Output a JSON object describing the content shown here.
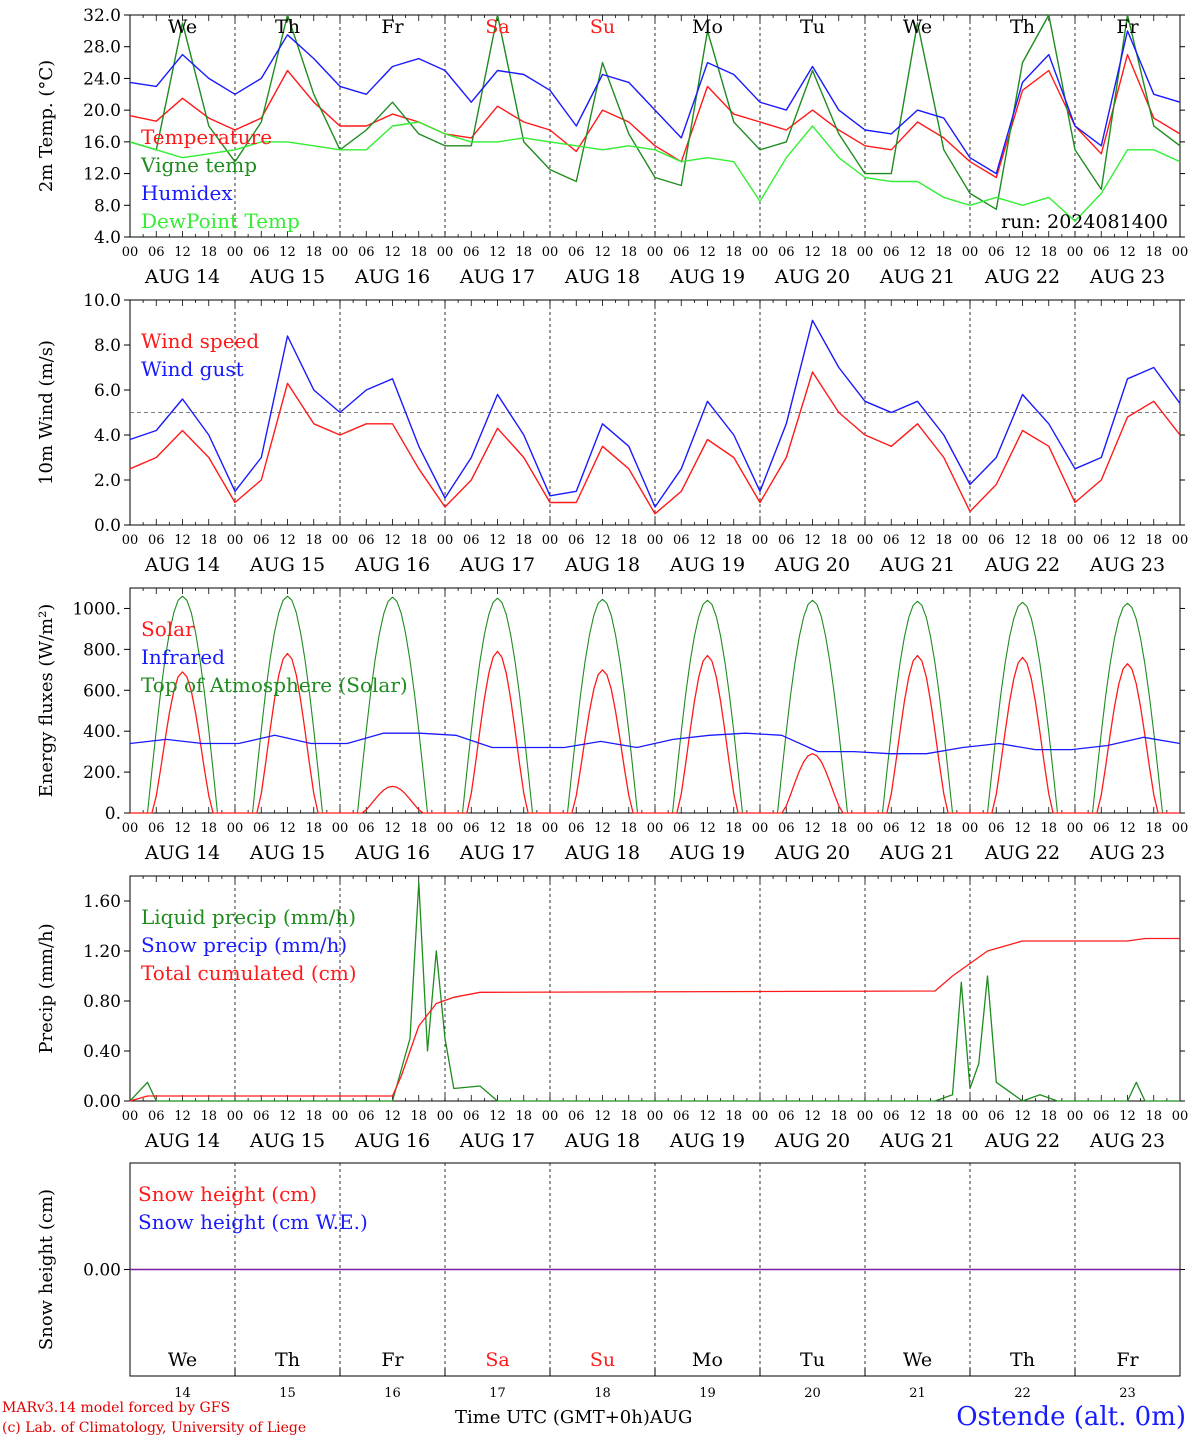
{
  "days": [
    "We",
    "Th",
    "Fr",
    "Sa",
    "Su",
    "Mo",
    "Tu",
    "We",
    "Th",
    "Fr"
  ],
  "weekend_days": [
    3,
    4
  ],
  "date_labels": [
    "AUG 14",
    "AUG 15",
    "AUG 16",
    "AUG 17",
    "AUG 18",
    "AUG 19",
    "AUG 20",
    "AUG 21",
    "AUG 22",
    "AUG 23"
  ],
  "hour_labels": [
    "00",
    "06",
    "12",
    "18"
  ],
  "hour_end": "00",
  "bottom_day_numbers": [
    "14",
    "15",
    "16",
    "17",
    "18",
    "19",
    "20",
    "21",
    "22",
    "23"
  ],
  "run_label": "run: 2024081400",
  "colors": {
    "red": "#ff1a1a",
    "green": "#1f8c1f",
    "blue": "#1a1aff",
    "light_green": "#33ee33",
    "purple": "#7a1fa0"
  },
  "footer": {
    "model": "MARv3.14 model forced by GFS",
    "credit": "(c) Lab. of Climatology, University of Liege",
    "axis_title": "Time UTC (GMT+0h)AUG",
    "station": "Ostende (alt. 0m)"
  },
  "chart_data": [
    {
      "type": "line",
      "ylabel": "2m Temp. (°C)",
      "ylim": [
        4,
        32
      ],
      "yticks": [
        "4.0",
        "8.0",
        "12.0",
        "16.0",
        "20.0",
        "24.0",
        "28.0",
        "32.0"
      ],
      "x_hours_from_start": [
        0,
        6,
        12,
        18,
        24,
        30,
        36,
        42,
        48,
        54,
        60,
        66,
        72,
        78,
        84,
        90,
        96,
        102,
        108,
        114,
        120,
        126,
        132,
        138,
        144,
        150,
        156,
        162,
        168,
        174,
        180,
        186,
        192,
        198,
        204,
        210,
        216,
        222,
        228,
        234,
        240
      ],
      "series": [
        {
          "name": "Temperature",
          "color": "red",
          "values": [
            19.3,
            18.6,
            21.5,
            19.0,
            17.5,
            19.0,
            25.0,
            21.0,
            18.0,
            18.0,
            19.5,
            18.5,
            17.0,
            16.5,
            20.5,
            18.5,
            17.5,
            14.8,
            20.0,
            18.5,
            15.5,
            13.5,
            23.0,
            19.5,
            18.5,
            17.5,
            20.0,
            17.5,
            15.5,
            15.0,
            18.5,
            16.5,
            13.5,
            11.5,
            22.5,
            25.0,
            18.0,
            14.5,
            27.0,
            19.0,
            17.0
          ]
        },
        {
          "name": "Vigne temp",
          "color": "green",
          "values": [
            16.0,
            15.0,
            31.0,
            18.0,
            13.5,
            18.5,
            32.0,
            22.0,
            15.0,
            17.5,
            21.0,
            17.0,
            15.5,
            15.5,
            32.0,
            16.0,
            12.5,
            11.0,
            26.0,
            17.0,
            11.5,
            10.5,
            30.0,
            18.5,
            15.0,
            16.0,
            25.0,
            17.0,
            12.0,
            12.0,
            31.0,
            15.0,
            9.5,
            7.5,
            26.0,
            32.0,
            15.0,
            10.0,
            32.0,
            18.0,
            15.5
          ]
        },
        {
          "name": "Humidex",
          "color": "blue",
          "values": [
            23.5,
            23.0,
            27.0,
            24.0,
            22.0,
            24.0,
            29.5,
            26.5,
            23.0,
            22.0,
            25.5,
            26.5,
            25.0,
            21.0,
            25.0,
            24.5,
            22.5,
            18.0,
            24.5,
            23.5,
            20.0,
            16.5,
            26.0,
            24.5,
            21.0,
            20.0,
            25.5,
            20.0,
            17.5,
            17.0,
            20.0,
            19.0,
            14.0,
            12.0,
            23.5,
            27.0,
            18.0,
            15.5,
            30.0,
            22.0,
            21.0
          ]
        },
        {
          "name": "DewPoint Temp",
          "color": "light_green",
          "values": [
            16.0,
            15.0,
            14.0,
            14.5,
            15.0,
            16.0,
            16.0,
            15.5,
            15.0,
            15.0,
            18.0,
            18.5,
            17.0,
            16.0,
            16.0,
            16.5,
            16.0,
            15.5,
            15.0,
            15.5,
            15.0,
            13.5,
            14.0,
            13.5,
            8.5,
            14.0,
            18.0,
            14.0,
            11.5,
            11.0,
            11.0,
            9.0,
            8.0,
            9.0,
            8.0,
            9.0,
            6.0,
            9.5,
            15.0,
            15.0,
            13.5
          ]
        }
      ],
      "annotation": "run: 2024081400"
    },
    {
      "type": "line",
      "ylabel": "10m Wind (m/s)",
      "ylim": [
        0,
        10
      ],
      "yticks": [
        "0.0",
        "2.0",
        "4.0",
        "6.0",
        "8.0",
        "10.0"
      ],
      "reference_line": 5.0,
      "x_hours_from_start": [
        0,
        6,
        12,
        18,
        24,
        30,
        36,
        42,
        48,
        54,
        60,
        66,
        72,
        78,
        84,
        90,
        96,
        102,
        108,
        114,
        120,
        126,
        132,
        138,
        144,
        150,
        156,
        162,
        168,
        174,
        180,
        186,
        192,
        198,
        204,
        210,
        216,
        222,
        228,
        234,
        240
      ],
      "series": [
        {
          "name": "Wind speed",
          "color": "red",
          "values": [
            2.5,
            3.0,
            4.2,
            3.0,
            1.0,
            2.0,
            6.3,
            4.5,
            4.0,
            4.5,
            4.5,
            2.5,
            0.8,
            2.0,
            4.3,
            3.0,
            1.0,
            1.0,
            3.5,
            2.5,
            0.5,
            1.5,
            3.8,
            3.0,
            1.0,
            3.0,
            6.8,
            5.0,
            4.0,
            3.5,
            4.5,
            3.0,
            0.6,
            1.8,
            4.2,
            3.5,
            1.0,
            2.0,
            4.8,
            5.5,
            4.0
          ]
        },
        {
          "name": "Wind gust",
          "color": "blue",
          "values": [
            3.8,
            4.2,
            5.6,
            4.0,
            1.5,
            3.0,
            8.4,
            6.0,
            5.0,
            6.0,
            6.5,
            3.5,
            1.2,
            3.0,
            5.8,
            4.0,
            1.3,
            1.5,
            4.5,
            3.5,
            0.8,
            2.5,
            5.5,
            4.0,
            1.5,
            4.5,
            9.1,
            7.0,
            5.5,
            5.0,
            5.5,
            4.0,
            1.8,
            3.0,
            5.8,
            4.5,
            2.5,
            3.0,
            6.5,
            7.0,
            5.4
          ]
        }
      ]
    },
    {
      "type": "line",
      "ylabel": "Energy fluxes (W/m²)",
      "ylim": [
        0,
        1100
      ],
      "yticks": [
        "0.",
        "200.",
        "400.",
        "600.",
        "800.",
        "1000."
      ],
      "series": [
        {
          "name": "Solar",
          "color": "red",
          "daily_peaks": [
            690,
            780,
            130,
            790,
            700,
            770,
            290,
            770,
            760,
            730
          ]
        },
        {
          "name": "Infrared",
          "color": "blue",
          "values": [
            340,
            360,
            340,
            340,
            380,
            340,
            340,
            390,
            390,
            380,
            320,
            320,
            320,
            350,
            320,
            360,
            380,
            390,
            380,
            300,
            300,
            290,
            290,
            320,
            340,
            310,
            310,
            330,
            370,
            340
          ]
        },
        {
          "name": "Top of Atmosphere (Solar)",
          "color": "green",
          "daily_peaks": [
            1060,
            1060,
            1055,
            1050,
            1045,
            1040,
            1040,
            1035,
            1030,
            1025
          ]
        }
      ]
    },
    {
      "type": "line",
      "ylabel": "Precip (mm/h)",
      "ylim": [
        0,
        1.8
      ],
      "yticks": [
        "0.00",
        "0.40",
        "0.80",
        "1.20",
        "1.60"
      ],
      "series": [
        {
          "name": "Liquid precip (mm/h)",
          "color": "green",
          "points": [
            [
              0,
              0
            ],
            [
              4,
              0.15
            ],
            [
              6,
              0
            ],
            [
              60,
              0
            ],
            [
              64,
              0.5
            ],
            [
              66,
              1.75
            ],
            [
              68,
              0.4
            ],
            [
              70,
              1.2
            ],
            [
              72,
              0.5
            ],
            [
              74,
              0.1
            ],
            [
              80,
              0.12
            ],
            [
              84,
              0
            ],
            [
              184,
              0
            ],
            [
              188,
              0.05
            ],
            [
              190,
              0.95
            ],
            [
              192,
              0.1
            ],
            [
              194,
              0.3
            ],
            [
              196,
              1.0
            ],
            [
              198,
              0.15
            ],
            [
              204,
              0
            ],
            [
              208,
              0.05
            ],
            [
              212,
              0
            ],
            [
              228,
              0
            ],
            [
              230,
              0.15
            ],
            [
              232,
              0
            ],
            [
              240,
              0
            ]
          ]
        },
        {
          "name": "Snow precip (mm/h)",
          "color": "blue",
          "points": []
        },
        {
          "name": "Total cumulated (cm)",
          "color": "red",
          "points": [
            [
              0,
              0
            ],
            [
              4,
              0.04
            ],
            [
              60,
              0.04
            ],
            [
              62,
              0.2
            ],
            [
              66,
              0.6
            ],
            [
              70,
              0.78
            ],
            [
              74,
              0.83
            ],
            [
              80,
              0.87
            ],
            [
              184,
              0.88
            ],
            [
              188,
              1.0
            ],
            [
              192,
              1.1
            ],
            [
              196,
              1.2
            ],
            [
              204,
              1.28
            ],
            [
              228,
              1.28
            ],
            [
              232,
              1.3
            ],
            [
              240,
              1.3
            ]
          ]
        }
      ]
    },
    {
      "type": "line",
      "ylabel": "Snow height (cm)",
      "ylim": [
        -1,
        1
      ],
      "yticks": [
        "0.00"
      ],
      "series": [
        {
          "name": "Snow height (cm)",
          "color": "red",
          "points": [
            [
              0,
              0
            ],
            [
              240,
              0
            ]
          ]
        },
        {
          "name": "Snow height (cm W.E.)",
          "color": "blue",
          "points": [
            [
              0,
              0
            ],
            [
              240,
              0
            ]
          ]
        }
      ]
    }
  ]
}
